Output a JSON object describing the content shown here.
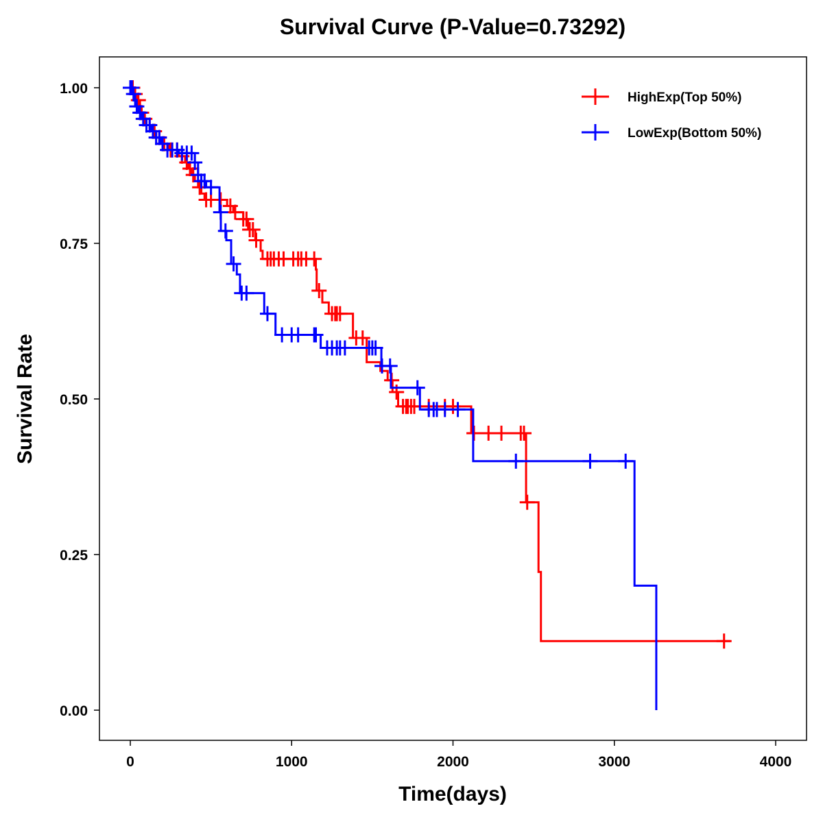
{
  "chart_data": {
    "type": "line",
    "subtype": "kaplan-meier step",
    "title": "Survival Curve (P-Value=0.73292)",
    "xlabel": "Time(days)",
    "ylabel": "Survival Rate",
    "xlim": [
      -200,
      4200
    ],
    "ylim": [
      -0.05,
      1.05
    ],
    "xticks": [
      0,
      1000,
      2000,
      3000,
      4000
    ],
    "xtick_labels": [
      "0",
      "1000",
      "2000",
      "3000",
      "4000"
    ],
    "yticks": [
      0,
      0.25,
      0.5,
      0.75,
      1.0
    ],
    "ytick_labels": [
      "0.00",
      "0.25",
      "0.50",
      "0.75",
      "1.00"
    ],
    "grid": false,
    "legend_position": "top-right",
    "series": [
      {
        "name": "HighExp(Top 50%)",
        "color": "#ff0000",
        "end_time": 3720,
        "steps": [
          [
            0,
            1.0
          ],
          [
            20,
            0.99
          ],
          [
            40,
            0.98
          ],
          [
            60,
            0.96
          ],
          [
            80,
            0.95
          ],
          [
            100,
            0.94
          ],
          [
            130,
            0.93
          ],
          [
            160,
            0.92
          ],
          [
            200,
            0.91
          ],
          [
            240,
            0.9
          ],
          [
            300,
            0.89
          ],
          [
            340,
            0.88
          ],
          [
            360,
            0.87
          ],
          [
            380,
            0.86
          ],
          [
            400,
            0.85
          ],
          [
            420,
            0.84
          ],
          [
            440,
            0.83
          ],
          [
            460,
            0.82
          ],
          [
            600,
            0.81
          ],
          [
            638,
            0.8
          ],
          [
            700,
            0.789
          ],
          [
            730,
            0.772
          ],
          [
            775,
            0.755
          ],
          [
            808,
            0.738
          ],
          [
            820,
            0.725
          ],
          [
            1150,
            0.708
          ],
          [
            1155,
            0.674
          ],
          [
            1190,
            0.655
          ],
          [
            1230,
            0.637
          ],
          [
            1380,
            0.598
          ],
          [
            1465,
            0.559
          ],
          [
            1550,
            0.545
          ],
          [
            1595,
            0.53
          ],
          [
            1625,
            0.511
          ],
          [
            1660,
            0.488
          ],
          [
            2113,
            0.445
          ],
          [
            2453,
            0.334
          ],
          [
            2530,
            0.222
          ],
          [
            2545,
            0.111
          ]
        ],
        "censored": [
          5,
          15,
          30,
          50,
          70,
          90,
          120,
          150,
          180,
          210,
          250,
          290,
          320,
          350,
          370,
          390,
          430,
          470,
          500,
          560,
          620,
          650,
          700,
          720,
          740,
          760,
          780,
          850,
          870,
          890,
          920,
          950,
          1010,
          1040,
          1060,
          1090,
          1140,
          1170,
          1250,
          1270,
          1280,
          1300,
          1400,
          1440,
          1620,
          1650,
          1690,
          1710,
          1720,
          1740,
          1760,
          1850,
          1950,
          2000,
          2130,
          2220,
          2300,
          2420,
          2440,
          2460,
          3680
        ]
      },
      {
        "name": "LowExp(Bottom 50%)",
        "color": "#0000ff",
        "end_time": 3260,
        "steps": [
          [
            0,
            1.0
          ],
          [
            15,
            0.99
          ],
          [
            30,
            0.97
          ],
          [
            50,
            0.96
          ],
          [
            70,
            0.95
          ],
          [
            100,
            0.94
          ],
          [
            130,
            0.93
          ],
          [
            160,
            0.92
          ],
          [
            190,
            0.91
          ],
          [
            230,
            0.9
          ],
          [
            300,
            0.895
          ],
          [
            400,
            0.88
          ],
          [
            420,
            0.86
          ],
          [
            440,
            0.85
          ],
          [
            470,
            0.84
          ],
          [
            553,
            0.8
          ],
          [
            561,
            0.77
          ],
          [
            595,
            0.755
          ],
          [
            625,
            0.717
          ],
          [
            660,
            0.7
          ],
          [
            680,
            0.67
          ],
          [
            830,
            0.637
          ],
          [
            900,
            0.603
          ],
          [
            1180,
            0.582
          ],
          [
            1556,
            0.553
          ],
          [
            1615,
            0.518
          ],
          [
            1795,
            0.483
          ],
          [
            2125,
            0.4
          ],
          [
            3125,
            0.2
          ],
          [
            3260,
            0.0
          ]
        ],
        "censored": [
          0,
          10,
          20,
          40,
          60,
          80,
          100,
          120,
          140,
          160,
          180,
          200,
          230,
          260,
          290,
          320,
          350,
          380,
          400,
          420,
          440,
          460,
          500,
          560,
          590,
          640,
          690,
          720,
          850,
          940,
          1000,
          1040,
          1140,
          1150,
          1220,
          1250,
          1280,
          1300,
          1330,
          1480,
          1500,
          1520,
          1560,
          1610,
          1780,
          1850,
          1880,
          1900,
          1950,
          2030,
          2390,
          2850,
          3070
        ]
      }
    ]
  }
}
